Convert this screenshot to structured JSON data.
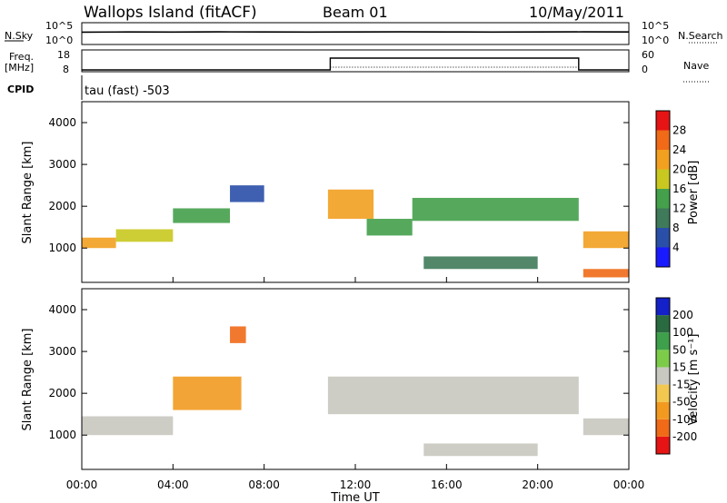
{
  "header": {
    "station": "Wallops Island (fitACF)",
    "beam": "Beam 01",
    "date": "10/May/2011"
  },
  "strip_labels": {
    "nsky": "N.Sky",
    "freq_line1": "Freq.",
    "freq_line2": "[MHz]",
    "cpid": "CPID",
    "nsearch": "N.Search",
    "nave": "Nave",
    "cpid_value": "tau (fast) -503"
  },
  "strip_ticks": {
    "nsky_top": "10^5",
    "nsky_bottom": "10^0",
    "nsearch_top": "10^5",
    "nsearch_bottom": "10^0",
    "freq_top": "18",
    "freq_bottom": "8",
    "nave_top": "60",
    "nave_bottom": "0"
  },
  "axes": {
    "ylabel": "Slant Range [km]",
    "xlabel": "Time UT",
    "y_ticks": [
      "1000",
      "2000",
      "3000",
      "4000"
    ],
    "x_ticks": [
      "00:00",
      "04:00",
      "08:00",
      "12:00",
      "16:00",
      "20:00",
      "00:00"
    ]
  },
  "colorbars": {
    "power": {
      "label": "Power [dB]",
      "ticks": [
        "4",
        "8",
        "12",
        "16",
        "20",
        "24",
        "28"
      ],
      "colors": [
        "#1a1aff",
        "#2a4fa8",
        "#3f7a5a",
        "#44a04a",
        "#c8c820",
        "#f2a020",
        "#f06a18",
        "#e61414"
      ]
    },
    "velocity": {
      "label": "Velocity [m s⁻¹]",
      "ticks": [
        "200",
        "100",
        "50",
        "15",
        "-15",
        "-50",
        "-100",
        "-200"
      ],
      "colors": [
        "#1420c8",
        "#2a6a40",
        "#3ea04a",
        "#7ccc4a",
        "#c8c8c0",
        "#f2c850",
        "#f29a20",
        "#f06a18",
        "#e61414"
      ]
    }
  },
  "chart_data": [
    {
      "type": "line",
      "title": "N.Sky / N.Search",
      "x": [
        0,
        2,
        4,
        6,
        8,
        10,
        12,
        14,
        16,
        18,
        20,
        22,
        24
      ],
      "series": [
        {
          "name": "N.Sky",
          "values": [
            800,
            900,
            850,
            950,
            900,
            850,
            900,
            950,
            900,
            850,
            900,
            950,
            900
          ]
        }
      ],
      "ylim": [
        1,
        100000
      ],
      "yscale": "log"
    },
    {
      "type": "line",
      "title": "Freq. [MHz] / Nave",
      "x": [
        0,
        10.9,
        10.9,
        21.8,
        21.8,
        24
      ],
      "series": [
        {
          "name": "Freq.",
          "values": [
            8.0,
            8.0,
            14.5,
            14.5,
            8.0,
            8.0
          ]
        }
      ],
      "ylim": [
        8,
        18
      ]
    },
    {
      "type": "heatmap",
      "title": "Power [dB]",
      "xlabel": "Time UT",
      "ylabel": "Slant Range [km]",
      "xlim": [
        0,
        24
      ],
      "ylim": [
        180,
        4500
      ],
      "x_unit": "hours UT",
      "bands": [
        {
          "t0": 0.0,
          "t1": 1.5,
          "r0": 1000,
          "r1": 1250,
          "power": 24
        },
        {
          "t0": 1.5,
          "t1": 4.0,
          "r0": 1150,
          "r1": 1450,
          "power": 20
        },
        {
          "t0": 4.0,
          "t1": 6.5,
          "r0": 1600,
          "r1": 1950,
          "power": 14
        },
        {
          "t0": 6.5,
          "t1": 8.0,
          "r0": 2100,
          "r1": 2500,
          "power": 8
        },
        {
          "t0": 10.8,
          "t1": 12.8,
          "r0": 1700,
          "r1": 2400,
          "power": 22
        },
        {
          "t0": 12.5,
          "t1": 14.5,
          "r0": 1300,
          "r1": 1700,
          "power": 16
        },
        {
          "t0": 14.5,
          "t1": 21.8,
          "r0": 1650,
          "r1": 2200,
          "power": 14
        },
        {
          "t0": 15.0,
          "t1": 20.0,
          "r0": 500,
          "r1": 800,
          "power": 12
        },
        {
          "t0": 22.0,
          "t1": 24.0,
          "r0": 1000,
          "r1": 1400,
          "power": 24
        },
        {
          "t0": 22.0,
          "t1": 24.0,
          "r0": 300,
          "r1": 500,
          "power": 26
        }
      ]
    },
    {
      "type": "heatmap",
      "title": "Velocity [m s-1]",
      "xlabel": "Time UT",
      "ylabel": "Slant Range [km]",
      "xlim": [
        0,
        24
      ],
      "ylim": [
        180,
        4500
      ],
      "x_unit": "hours UT",
      "bands": [
        {
          "t0": 0.0,
          "t1": 4.0,
          "r0": 1000,
          "r1": 1450,
          "velocity": 0
        },
        {
          "t0": 4.0,
          "t1": 7.0,
          "r0": 1600,
          "r1": 2400,
          "velocity": -40
        },
        {
          "t0": 6.5,
          "t1": 7.2,
          "r0": 3200,
          "r1": 3600,
          "velocity": -120
        },
        {
          "t0": 10.8,
          "t1": 21.8,
          "r0": 1500,
          "r1": 2400,
          "velocity": 0
        },
        {
          "t0": 15.0,
          "t1": 20.0,
          "r0": 500,
          "r1": 800,
          "velocity": 0
        },
        {
          "t0": 22.0,
          "t1": 24.0,
          "r0": 1000,
          "r1": 1400,
          "velocity": 0
        }
      ]
    }
  ]
}
